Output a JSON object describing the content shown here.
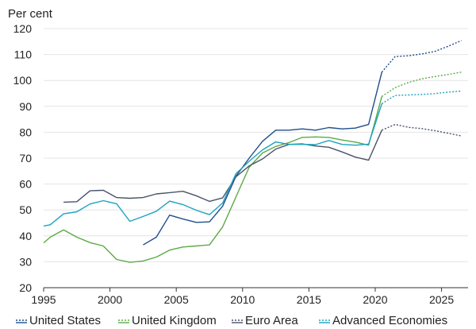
{
  "chart_data": {
    "type": "line",
    "title": "",
    "unit_label": "Per cent",
    "xlabel": "",
    "ylabel": "",
    "xlim": [
      1995,
      2027
    ],
    "ylim": [
      20,
      120
    ],
    "x_ticks": [
      1995,
      2000,
      2005,
      2010,
      2015,
      2020,
      2025
    ],
    "y_ticks": [
      20,
      30,
      40,
      50,
      60,
      70,
      80,
      90,
      100,
      110,
      120
    ],
    "grid": "horizontal",
    "legend_position": "bottom",
    "projection_style": "dotted",
    "series": [
      {
        "name": "United States",
        "color": "#1f4e8c",
        "x": [
          2002.5,
          2003.5,
          2004.5,
          2005.5,
          2006.5,
          2007.5,
          2008.5,
          2009.5,
          2010.5,
          2011.5,
          2012.5,
          2013.5,
          2014.5,
          2015.5,
          2016.5,
          2017.5,
          2018.5,
          2019.5,
          2020.5
        ],
        "y": [
          36.5,
          39.5,
          48,
          46.5,
          45.2,
          45.4,
          51.5,
          63,
          70,
          76.5,
          80.8,
          80.8,
          81.3,
          80.8,
          81.8,
          81.3,
          81.6,
          83,
          103.2
        ],
        "projection_x": [
          2020.5,
          2021.5,
          2022.5,
          2023.5,
          2024.5,
          2025.5,
          2026.5
        ],
        "projection_y": [
          103.2,
          109.2,
          109.5,
          110.2,
          111.2,
          113.2,
          115.4
        ]
      },
      {
        "name": "United Kingdom",
        "color": "#5aaa46",
        "x": [
          1995,
          1995.5,
          1996.5,
          1997.5,
          1998.5,
          1999.5,
          2000.5,
          2001.5,
          2002.5,
          2003.5,
          2004.5,
          2005.5,
          2006.5,
          2007.5,
          2008.5,
          2009.5,
          2010.5,
          2011.5,
          2012.5,
          2013.5,
          2014.5,
          2015.5,
          2016.5,
          2017.5,
          2018.5,
          2019.5,
          2020.5
        ],
        "y": [
          37.3,
          39.5,
          42.3,
          39.5,
          37.4,
          36.1,
          30.9,
          29.8,
          30.3,
          31.8,
          34.5,
          35.7,
          36.1,
          36.5,
          43.5,
          55,
          66.5,
          72,
          74.5,
          76,
          78,
          78.2,
          78,
          77,
          76.2,
          75,
          93.8
        ],
        "projection_x": [
          2020.5,
          2021.5,
          2022.5,
          2023.5,
          2024.5,
          2025.5,
          2026.5
        ],
        "projection_y": [
          93.8,
          97.2,
          99.2,
          100.6,
          101.5,
          102.3,
          103.2
        ]
      },
      {
        "name": "Euro Area",
        "color": "#48536a",
        "x": [
          1996.5,
          1997.5,
          1998.5,
          1999.5,
          2000.5,
          2001.5,
          2002.5,
          2003.5,
          2004.5,
          2005.5,
          2006.5,
          2007.5,
          2008.5,
          2009.5,
          2010.5,
          2011.5,
          2012.5,
          2013.5,
          2014.5,
          2015.5,
          2016.5,
          2017.5,
          2018.5,
          2019.5,
          2020.5
        ],
        "y": [
          53,
          53.2,
          57.4,
          57.6,
          54.8,
          54.5,
          54.8,
          56.2,
          56.7,
          57.2,
          55.5,
          53.3,
          54.7,
          62.8,
          67,
          69.7,
          73.5,
          75.3,
          75.5,
          74.7,
          74.2,
          72.4,
          70.4,
          69.2,
          80.8
        ],
        "projection_x": [
          2020.5,
          2021.5,
          2022.5,
          2023.5,
          2024.5,
          2025.5,
          2026.5
        ],
        "projection_y": [
          80.8,
          83,
          81.9,
          81.4,
          80.6,
          79.6,
          78.6
        ]
      },
      {
        "name": "Advanced Economies",
        "color": "#1ba3c0",
        "x": [
          1995,
          1995.5,
          1996.5,
          1997.5,
          1998.5,
          1999.5,
          2000.5,
          2001.5,
          2002.5,
          2003.5,
          2004.5,
          2005.5,
          2006.5,
          2007.5,
          2008.5,
          2009.5,
          2010.5,
          2011.5,
          2012.5,
          2013.5,
          2014.5,
          2015.5,
          2016.5,
          2017.5,
          2018.5,
          2019.5,
          2020.5
        ],
        "y": [
          43.8,
          44.3,
          48.5,
          49.3,
          52.3,
          53.6,
          52.4,
          45.6,
          47.5,
          49.5,
          53.4,
          52.1,
          49.9,
          48.2,
          52.7,
          64,
          68.8,
          73.2,
          76.3,
          75.3,
          75.3,
          75.2,
          76.8,
          75.3,
          75,
          75.4,
          91
        ],
        "projection_x": [
          2020.5,
          2021.5,
          2022.5,
          2023.5,
          2024.5,
          2025.5,
          2026.5
        ],
        "projection_y": [
          91,
          94.2,
          94.4,
          94.6,
          94.9,
          95.5,
          95.9
        ]
      }
    ]
  }
}
